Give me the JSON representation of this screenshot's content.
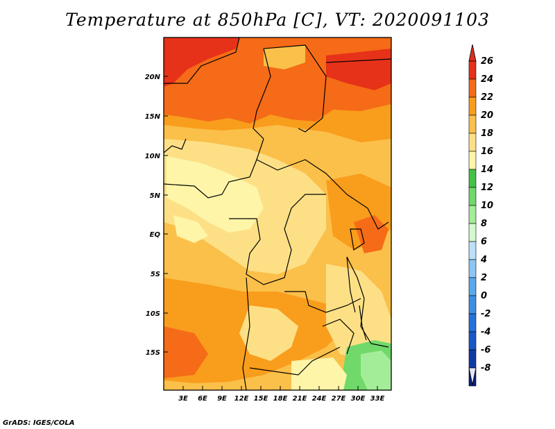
{
  "title": "Temperature at 850hPa [C], VT: 2020091103",
  "credit": "GrADS: IGES/COLA",
  "map": {
    "lon_labels": [
      "3E",
      "6E",
      "9E",
      "12E",
      "15E",
      "18E",
      "21E",
      "24E",
      "27E",
      "30E",
      "33E"
    ],
    "lat_labels": [
      "20N",
      "15N",
      "10N",
      "5N",
      "EQ",
      "5S",
      "10S",
      "15S"
    ]
  },
  "colorbar": {
    "levels": [
      "26",
      "24",
      "22",
      "20",
      "18",
      "16",
      "14",
      "12",
      "10",
      "8",
      "6",
      "4",
      "2",
      "0",
      "-2",
      "-4",
      "-6",
      "-8"
    ],
    "colors": [
      "#e63218",
      "#f56b17",
      "#f99d1c",
      "#fbc04a",
      "#fde086",
      "#fef5a8",
      "#44c244",
      "#70d96a",
      "#a4ed98",
      "#d5f8d0",
      "#bde0fa",
      "#8dc6f4",
      "#5aa9ee",
      "#3c8fe6",
      "#2372db",
      "#1958c8",
      "#0e3aa6",
      "#0a1e82"
    ],
    "over_color": "#d7301f",
    "under_color": "#e6e6fa"
  }
}
